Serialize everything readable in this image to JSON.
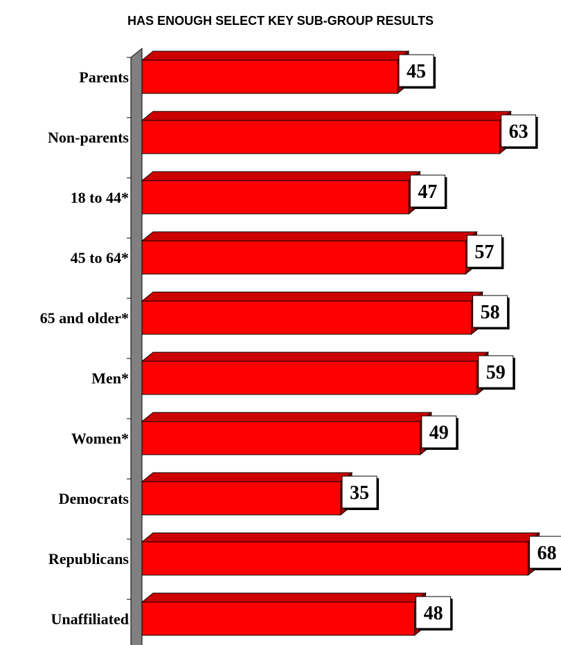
{
  "chart_data": {
    "type": "bar",
    "orientation": "horizontal",
    "title": "HAS ENOUGH SELECT KEY SUB-GROUP RESULTS",
    "categories": [
      "Parents",
      "Non-parents",
      "18 to 44*",
      "45 to 64*",
      "65 and older*",
      "Men*",
      "Women*",
      "Democrats",
      "Republicans",
      "Unaffiliated"
    ],
    "values": [
      45,
      63,
      47,
      57,
      58,
      59,
      49,
      35,
      68,
      48
    ],
    "value_labels": [
      "45",
      "63",
      "47",
      "57",
      "58",
      "59",
      "49",
      "35",
      "68",
      "48"
    ],
    "xlim": [
      0,
      68
    ],
    "grid": false,
    "legend": "none",
    "bar_color": "#ff0000",
    "bar_top_color": "#cc0000",
    "bar_side_color": "#990000",
    "wall_color": "#808080"
  }
}
